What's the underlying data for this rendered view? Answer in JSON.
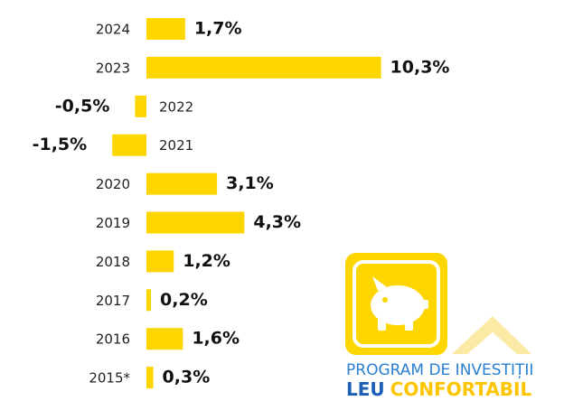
{
  "chart_data": {
    "type": "bar",
    "orientation": "horizontal",
    "categories": [
      "2024",
      "2023",
      "2022",
      "2021",
      "2020",
      "2019",
      "2018",
      "2017",
      "2016",
      "2015*"
    ],
    "values": [
      1.7,
      10.3,
      -0.5,
      -1.5,
      3.1,
      4.3,
      1.2,
      0.2,
      1.6,
      0.3
    ],
    "value_labels": [
      "1,7%",
      "10,3%",
      "-0,5%",
      "-1,5%",
      "3,1%",
      "4,3%",
      "1,2%",
      "0,2%",
      "1,6%",
      "0,3%"
    ],
    "color": "#fdd600"
  },
  "logo": {
    "line1": "PROGRAM DE INVESTIȚII",
    "line2a": "LEU",
    "line2b": "CONFORTABIL"
  }
}
